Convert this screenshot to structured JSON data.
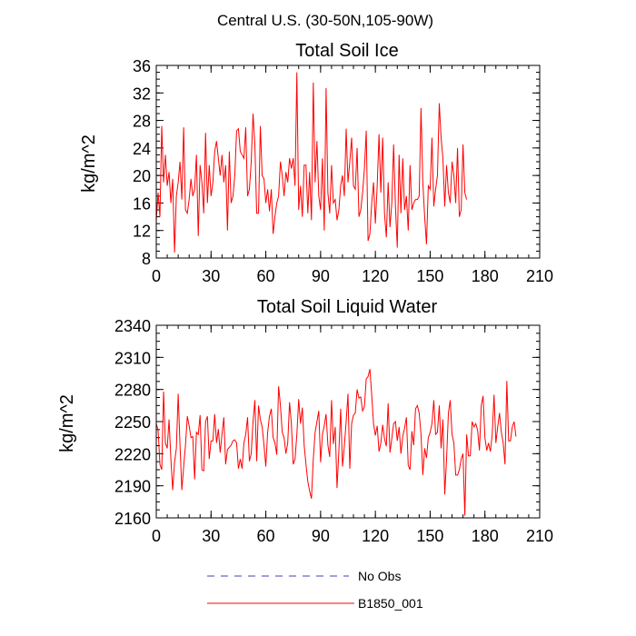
{
  "figure": {
    "title": "Central U.S. (30-50N,105-90W)"
  },
  "legend": {
    "items": [
      {
        "label": "No Obs",
        "color": "#3f3fbf",
        "style": "dashed"
      },
      {
        "label": "B1850_001",
        "color": "#ff0000",
        "style": "solid"
      }
    ]
  },
  "chart_data": [
    {
      "type": "line",
      "title": "Total Soil Ice",
      "xlabel": "",
      "ylabel": "kg/m^2",
      "xlim": [
        0,
        210
      ],
      "ylim": [
        8,
        36
      ],
      "xticks": [
        0,
        30,
        60,
        90,
        120,
        150,
        180,
        210
      ],
      "yticks": [
        8,
        12,
        16,
        20,
        24,
        28,
        32,
        36
      ],
      "series": [
        {
          "name": "B1850_001",
          "color": "#ff0000",
          "values": [
            13.5,
            17.5,
            14.0,
            27.2,
            19.0,
            23.0,
            18.5,
            20.5,
            16.0,
            19.5,
            8.8,
            17.0,
            19.0,
            22.0,
            16.5,
            27.0,
            15.0,
            14.5,
            16.5,
            19.5,
            17.0,
            18.0,
            23.0,
            11.2,
            21.5,
            19.0,
            14.5,
            26.2,
            16.0,
            21.5,
            17.0,
            19.0,
            23.5,
            25.0,
            22.5,
            20.0,
            23.0,
            19.0,
            21.5,
            12.0,
            23.5,
            16.0,
            17.0,
            20.0,
            26.5,
            26.8,
            23.5,
            23.0,
            22.5,
            27.0,
            17.0,
            18.0,
            22.0,
            29.0,
            24.5,
            14.5,
            14.5,
            27.2,
            20.0,
            19.5,
            16.0,
            18.0,
            14.8,
            18.0,
            11.5,
            14.0,
            16.0,
            17.0,
            22.0,
            20.0,
            17.0,
            20.5,
            19.0,
            22.5,
            21.0,
            22.5,
            18.5,
            35.0,
            15.0,
            18.5,
            14.0,
            21.5,
            21.5,
            14.5,
            20.5,
            13.5,
            33.5,
            19.0,
            25.0,
            17.0,
            15.0,
            22.5,
            12.0,
            32.7,
            17.5,
            14.5,
            21.5,
            16.0,
            16.5,
            13.5,
            15.0,
            18.5,
            20.0,
            17.0,
            26.8,
            19.0,
            22.0,
            25.5,
            18.5,
            18.0,
            24.0,
            14.0,
            15.0,
            17.5,
            21.0,
            26.5,
            10.5,
            11.5,
            16.0,
            19.0,
            13.0,
            18.5,
            26.0,
            17.5,
            25.5,
            14.5,
            11.0,
            19.0,
            12.5,
            16.0,
            24.5,
            15.5,
            9.5,
            23.0,
            14.5,
            22.5,
            15.0,
            17.0,
            12.0,
            21.5,
            15.0,
            16.0,
            16.5,
            16.5,
            17.0,
            29.8,
            19.0,
            14.0,
            10.0,
            18.5,
            18.0,
            25.5,
            15.5,
            18.0,
            20.0,
            30.5,
            25.5,
            22.5,
            15.5,
            21.5,
            17.5,
            16.0,
            22.0,
            20.0,
            16.0,
            24.0,
            14.0,
            15.0,
            24.5,
            17.5,
            16.5
          ]
        }
      ]
    },
    {
      "type": "line",
      "title": "Total Soil Liquid Water",
      "xlabel": "",
      "ylabel": "kg/m^2",
      "xlim": [
        0,
        210
      ],
      "ylim": [
        2160,
        2340
      ],
      "xticks": [
        0,
        30,
        60,
        90,
        120,
        150,
        180,
        210
      ],
      "yticks": [
        2160,
        2190,
        2220,
        2250,
        2280,
        2310,
        2340
      ],
      "series": [
        {
          "name": "B1850_001",
          "color": "#ff0000",
          "values": [
            2248,
            2242,
            2210,
            2205,
            2278,
            2230,
            2225,
            2252,
            2215,
            2186,
            2212,
            2225,
            2276,
            2228,
            2186,
            2208,
            2228,
            2255,
            2246,
            2235,
            2236,
            2196,
            2240,
            2238,
            2256,
            2205,
            2204,
            2250,
            2255,
            2215,
            2232,
            2232,
            2257,
            2230,
            2243,
            2221,
            2238,
            2254,
            2210,
            2224,
            2226,
            2228,
            2232,
            2233,
            2230,
            2206,
            2215,
            2206,
            2230,
            2238,
            2254,
            2213,
            2220,
            2250,
            2270,
            2213,
            2265,
            2252,
            2245,
            2228,
            2208,
            2240,
            2255,
            2262,
            2235,
            2230,
            2219,
            2283,
            2265,
            2240,
            2235,
            2220,
            2230,
            2268,
            2248,
            2210,
            2215,
            2238,
            2271,
            2248,
            2263,
            2228,
            2210,
            2194,
            2185,
            2178,
            2215,
            2240,
            2250,
            2260,
            2212,
            2238,
            2246,
            2257,
            2228,
            2217,
            2270,
            2229,
            2245,
            2188,
            2222,
            2262,
            2208,
            2227,
            2250,
            2276,
            2206,
            2248,
            2256,
            2258,
            2280,
            2272,
            2273,
            2260,
            2264,
            2290,
            2292,
            2299,
            2275,
            2248,
            2237,
            2246,
            2222,
            2230,
            2247,
            2234,
            2227,
            2267,
            2221,
            2234,
            2248,
            2250,
            2232,
            2245,
            2220,
            2236,
            2244,
            2254,
            2209,
            2205,
            2241,
            2228,
            2262,
            2265,
            2258,
            2238,
            2200,
            2225,
            2216,
            2235,
            2240,
            2248,
            2270,
            2238,
            2240,
            2265,
            2225,
            2252,
            2182,
            2215,
            2258,
            2270,
            2238,
            2230,
            2200,
            2200,
            2205,
            2215,
            2220,
            2162,
            2238,
            2218,
            2218,
            2250,
            2245,
            2248,
            2242,
            2223,
            2265,
            2274,
            2235,
            2223,
            2230,
            2222,
            2238,
            2275,
            2230,
            2245,
            2258,
            2240,
            2230,
            2210,
            2288,
            2232,
            2232,
            2245,
            2250,
            2236
          ]
        }
      ]
    }
  ]
}
